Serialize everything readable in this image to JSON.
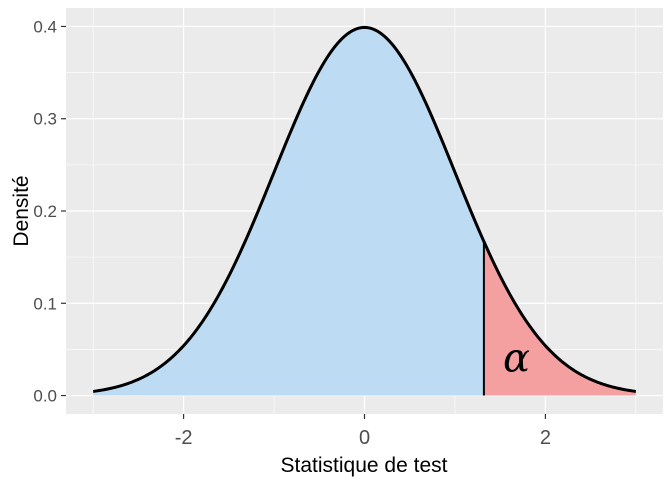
{
  "chart_data": {
    "type": "area",
    "distribution": "standard normal density",
    "x_range": [
      -3,
      3
    ],
    "critical_value": 1.32,
    "xlabel": "Statistique de test",
    "ylabel": "Densité",
    "xlim": [
      -3.3,
      3.3
    ],
    "ylim": [
      -0.02,
      0.42
    ],
    "x_ticks": [
      -2,
      0,
      2
    ],
    "x_tick_labels": [
      "-2",
      "0",
      "2"
    ],
    "y_ticks": [
      0.0,
      0.1,
      0.2,
      0.3,
      0.4
    ],
    "y_tick_labels": [
      "0.0",
      "0.1",
      "0.2",
      "0.3",
      "0.4"
    ],
    "annotation": {
      "text": "α",
      "x": 1.68,
      "y": 0.026
    },
    "grid": true,
    "legend": "none",
    "colors": {
      "panel": "#ebebeb",
      "grid": "#ffffff",
      "body_fill": "#bddcf3",
      "tail_fill": "#f4a0a0",
      "curve": "#000000"
    }
  }
}
